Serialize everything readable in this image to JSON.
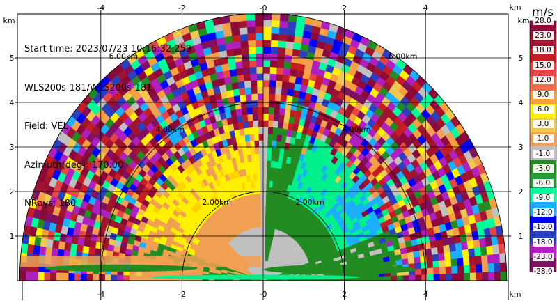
{
  "info": {
    "start_time": "Start time: 2023/07/23 10:16:32.259",
    "instrument": "WLS200s-181/WLS200s-181",
    "field": "Field: VEL",
    "azimuth": "Azimuth(deg): 170.00",
    "nrays": "NRays: 180"
  },
  "colorbar": {
    "unit": "m/s",
    "labels": [
      "28.0",
      "23.0",
      "18.0",
      "15.0",
      "12.0",
      "9.0",
      "6.0",
      "3.0",
      "1.0",
      "-1.0",
      "-3.0",
      "-6.0",
      "-9.0",
      "-12.0",
      "-15.0",
      "-18.0",
      "-23.0",
      "-28.0"
    ],
    "colors": [
      "#8b0a3a",
      "#a0142f",
      "#c41e24",
      "#e64545",
      "#f06e4e",
      "#f5a03c",
      "#fff000",
      "#f0c850",
      "#f0a050",
      "#c0c0c0",
      "#228b22",
      "#2a9a3a",
      "#00ff9a",
      "#1ab0ff",
      "#0000ff",
      "#2a40c0",
      "#b020c0",
      "#801060"
    ]
  },
  "chart_data": {
    "type": "heatmap",
    "title": "",
    "xlabel": "km",
    "ylabel": "km",
    "xlim": [
      -6.2,
      6.2
    ],
    "ylim": [
      0,
      5.95
    ],
    "x_ticks": [
      "-4",
      "-2",
      "-0",
      "2",
      "4"
    ],
    "x_tick_values": [
      -4,
      -2,
      0,
      2,
      4
    ],
    "y_ticks": [
      "1",
      "2",
      "3",
      "4",
      "5"
    ],
    "y_tick_values": [
      1,
      2,
      3,
      4,
      5
    ],
    "range_rings": [
      {
        "label": "2.00km",
        "radius": 2
      },
      {
        "label": "4.00km",
        "radius": 4
      },
      {
        "label": "6.00km",
        "radius": 6
      }
    ],
    "max_range_km": 6.0,
    "grid": true,
    "field": "VEL",
    "units": "m/s"
  }
}
